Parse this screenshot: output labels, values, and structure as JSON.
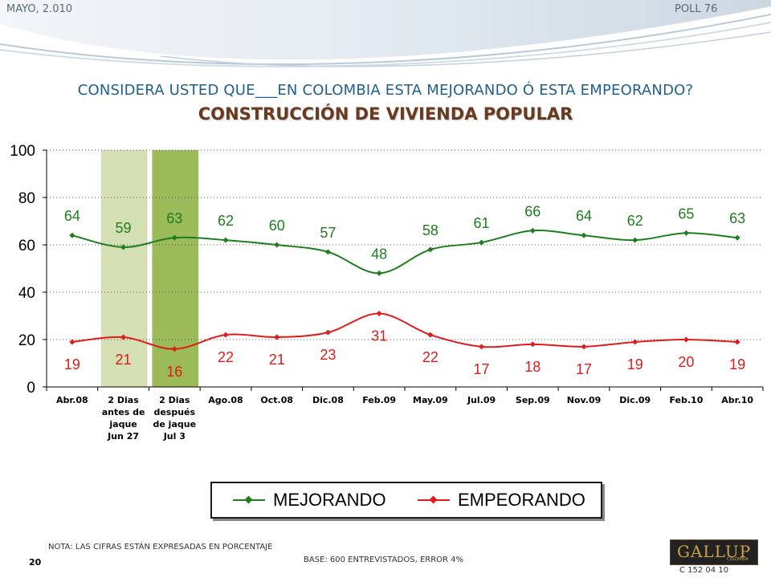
{
  "header": {
    "date": "MAYO, 2.010",
    "poll": "POLL 76"
  },
  "title": {
    "line1": "CONSIDERA USTED QUE___EN COLOMBIA ESTA MEJORANDO Ó ESTA EMPEORANDO?",
    "line2": "CONSTRUCCIÓN DE VIVIENDA POPULAR"
  },
  "colors": {
    "mejorando": "#1e7d1e",
    "empeorando": "#e01b1b",
    "highlight_light": "#d4e0b4",
    "highlight_dark": "#9bbb59"
  },
  "chart_data": {
    "type": "line",
    "categories": [
      [
        "Abr.08"
      ],
      [
        "2 Dias",
        "antes de",
        "jaque",
        "Jun 27"
      ],
      [
        "2 Dias",
        "después",
        "de jaque",
        "Jul 3"
      ],
      [
        "Ago.08"
      ],
      [
        "Oct.08"
      ],
      [
        "Dic.08"
      ],
      [
        "Feb.09"
      ],
      [
        "May.09"
      ],
      [
        "Jul.09"
      ],
      [
        "Sep.09"
      ],
      [
        "Nov.09"
      ],
      [
        "Dic.09"
      ],
      [
        "Feb.10"
      ],
      [
        "Abr.10"
      ]
    ],
    "series": [
      {
        "name": "MEJORANDO",
        "values": [
          64,
          59,
          63,
          62,
          60,
          57,
          48,
          58,
          61,
          66,
          64,
          62,
          65,
          63
        ]
      },
      {
        "name": "EMPEORANDO",
        "values": [
          19,
          21,
          16,
          22,
          21,
          23,
          31,
          22,
          17,
          18,
          17,
          19,
          20,
          19
        ]
      }
    ],
    "ylim": [
      0,
      100
    ],
    "yticks": [
      0,
      20,
      40,
      60,
      80,
      100
    ],
    "grid": true,
    "highlighted_categories": [
      1,
      2
    ],
    "legend_position": "bottom"
  },
  "footer": {
    "note": "NOTA: LAS CIFRAS ESTÁN EXPRESADAS EN PORCENTAJE",
    "base": "BASE: 600 ENTREVISTADOS, ERROR 4%",
    "page": "20",
    "code": "C 152 04 10",
    "logo": "GALLUP",
    "logo_sub": "COLOMBIA"
  }
}
